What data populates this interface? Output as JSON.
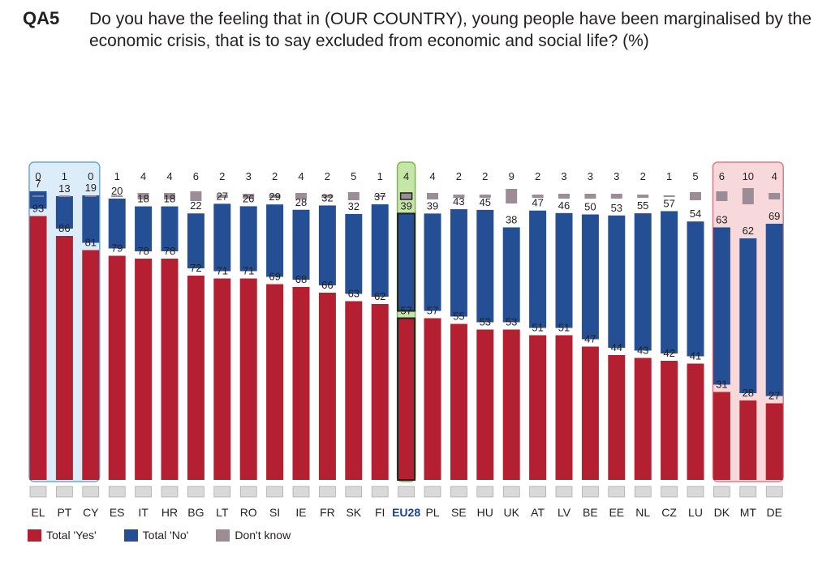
{
  "question": {
    "code": "QA5",
    "text": "Do you have the feeling that in (OUR COUNTRY), young people have been marginalised by the economic crisis, that is to say excluded from economic and social life? (%)"
  },
  "colors": {
    "yes": "#b41f31",
    "no": "#244f94",
    "dont_know": "#9c8c95",
    "highlight_min": "#dcecf8",
    "highlight_eu": "#c6e6a8",
    "highlight_max": "#f8d9db"
  },
  "chart_data": {
    "type": "bar",
    "stacked": true,
    "title": "",
    "xlabel": "",
    "ylabel": "",
    "ylim": [
      0,
      100
    ],
    "categories": [
      "EL",
      "PT",
      "CY",
      "ES",
      "IT",
      "HR",
      "BG",
      "LT",
      "RO",
      "SI",
      "IE",
      "FR",
      "SK",
      "FI",
      "EU28",
      "PL",
      "SE",
      "HU",
      "UK",
      "AT",
      "LV",
      "BE",
      "EE",
      "NL",
      "CZ",
      "LU",
      "DK",
      "MT",
      "DE"
    ],
    "series": [
      {
        "name": "Total 'Yes'",
        "values": [
          93,
          86,
          81,
          79,
          78,
          78,
          72,
          71,
          71,
          69,
          68,
          66,
          63,
          62,
          57,
          57,
          55,
          53,
          53,
          51,
          51,
          47,
          44,
          43,
          42,
          41,
          31,
          28,
          27
        ]
      },
      {
        "name": "Total 'No'",
        "values": [
          7,
          13,
          19,
          20,
          18,
          18,
          22,
          27,
          26,
          29,
          28,
          32,
          32,
          37,
          39,
          39,
          43,
          45,
          38,
          47,
          46,
          50,
          53,
          55,
          57,
          54,
          63,
          62,
          69
        ]
      },
      {
        "name": "Don't know",
        "values": [
          0,
          1,
          0,
          1,
          4,
          4,
          6,
          2,
          3,
          2,
          4,
          2,
          5,
          1,
          4,
          4,
          2,
          2,
          9,
          2,
          3,
          3,
          3,
          2,
          1,
          5,
          6,
          10,
          4
        ]
      }
    ],
    "highlight_groups": [
      {
        "from": "EL",
        "to": "CY",
        "label": "highest"
      },
      {
        "from": "EU28",
        "to": "EU28",
        "label": "EU28"
      },
      {
        "from": "DK",
        "to": "DE",
        "label": "lowest"
      }
    ],
    "legend_position": "bottom-left"
  },
  "legend": [
    {
      "key": "yes",
      "label": "Total 'Yes'"
    },
    {
      "key": "no",
      "label": "Total 'No'"
    },
    {
      "key": "dont_know",
      "label": "Don't know"
    }
  ]
}
